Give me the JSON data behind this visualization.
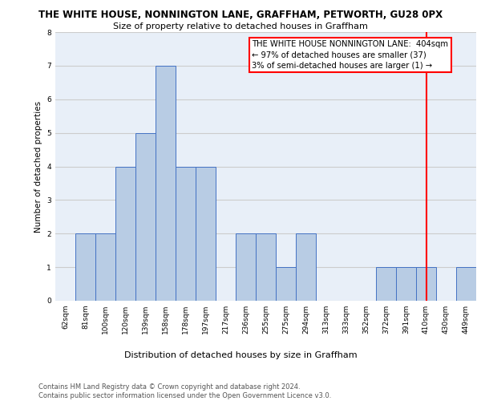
{
  "title": "THE WHITE HOUSE, NONNINGTON LANE, GRAFFHAM, PETWORTH, GU28 0PX",
  "subtitle": "Size of property relative to detached houses in Graffham",
  "xlabel": "Distribution of detached houses by size in Graffham",
  "ylabel": "Number of detached properties",
  "footer": "Contains HM Land Registry data © Crown copyright and database right 2024.\nContains public sector information licensed under the Open Government Licence v3.0.",
  "categories": [
    "62sqm",
    "81sqm",
    "100sqm",
    "120sqm",
    "139sqm",
    "158sqm",
    "178sqm",
    "197sqm",
    "217sqm",
    "236sqm",
    "255sqm",
    "275sqm",
    "294sqm",
    "313sqm",
    "333sqm",
    "352sqm",
    "372sqm",
    "391sqm",
    "410sqm",
    "430sqm",
    "449sqm"
  ],
  "values": [
    0,
    2,
    2,
    4,
    5,
    7,
    4,
    4,
    0,
    2,
    2,
    1,
    2,
    0,
    0,
    0,
    1,
    1,
    1,
    0,
    1
  ],
  "bar_color": "#b8cce4",
  "bar_edge_color": "#4472c4",
  "grid_color": "#cccccc",
  "bg_color": "#e8eff8",
  "vline_x_index": 18,
  "vline_color": "red",
  "annotation_text": "THE WHITE HOUSE NONNINGTON LANE:  404sqm\n← 97% of detached houses are smaller (37)\n3% of semi-detached houses are larger (1) →",
  "annotation_box_color": "white",
  "annotation_edge_color": "red",
  "ylim": [
    0,
    8
  ],
  "yticks": [
    0,
    1,
    2,
    3,
    4,
    5,
    6,
    7,
    8
  ],
  "title_fontsize": 8.5,
  "subtitle_fontsize": 8.0,
  "ylabel_fontsize": 7.5,
  "xlabel_fontsize": 8.0,
  "tick_fontsize": 6.5,
  "footer_fontsize": 6.0,
  "annot_fontsize": 7.2
}
